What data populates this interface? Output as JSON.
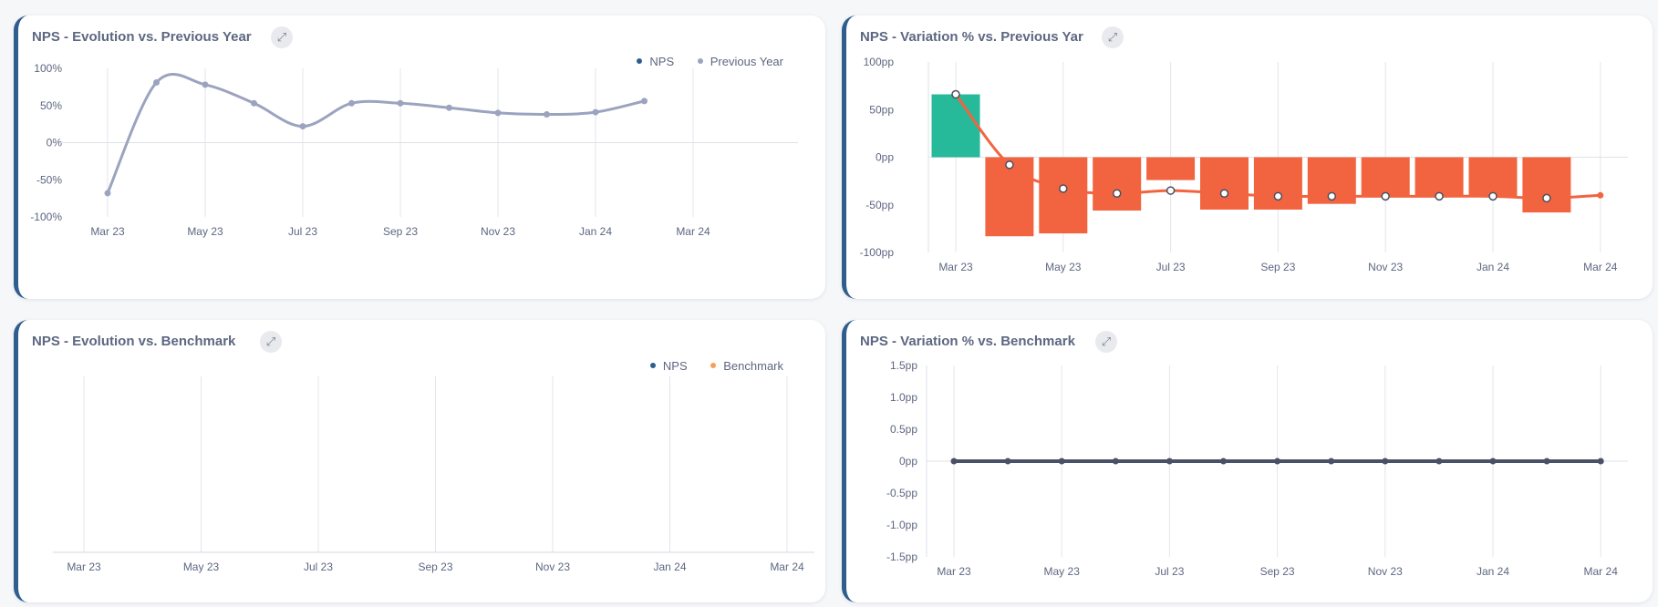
{
  "cards": [
    {
      "title": "NPS - Evolution vs. Previous Year",
      "legend": [
        {
          "label": "NPS",
          "color": "#2f5d8e"
        },
        {
          "label": "Previous Year",
          "color": "#9ba3bf"
        }
      ]
    },
    {
      "title": "NPS - Variation % vs. Previous Yar"
    },
    {
      "title": "NPS - Evolution vs. Benchmark",
      "legend": [
        {
          "label": "NPS",
          "color": "#2f5d8e"
        },
        {
          "label": "Benchmark",
          "color": "#f5a05a"
        }
      ]
    },
    {
      "title": "NPS - Variation % vs. Benchmark"
    }
  ],
  "expand_icon": "expand-icon",
  "chart_data": [
    {
      "type": "line",
      "title": "NPS - Evolution vs. Previous Year",
      "x_ticks": [
        "Mar 23",
        "May 23",
        "Jul 23",
        "Sep 23",
        "Nov 23",
        "Jan 24",
        "Mar 24"
      ],
      "y_ticks": [
        "100%",
        "50%",
        "0%",
        "-50%",
        "-100%"
      ],
      "ylim": [
        -100,
        100
      ],
      "series": [
        {
          "name": "Previous Year",
          "color": "#9ba3bf",
          "x": [
            "2023-03",
            "2023-04",
            "2023-05",
            "2023-06",
            "2023-07",
            "2023-08",
            "2023-09",
            "2023-10",
            "2023-11",
            "2023-12",
            "2024-01",
            "2024-02"
          ],
          "y": [
            -68,
            81,
            78,
            53,
            22,
            53,
            53,
            47,
            40,
            38,
            41,
            56
          ]
        },
        {
          "name": "NPS",
          "color": "#2f5d8e",
          "x": [],
          "y": []
        }
      ],
      "grid": "vertical",
      "legend_position": "top-right"
    },
    {
      "type": "bar",
      "title": "NPS - Variation % vs. Previous Yar",
      "x_ticks": [
        "Mar 23",
        "May 23",
        "Jul 23",
        "Sep 23",
        "Nov 23",
        "Jan 24",
        "Mar 24"
      ],
      "y_ticks": [
        "100pp",
        "50pp",
        "0pp",
        "-50pp",
        "-100pp"
      ],
      "ylim": [
        -100,
        100
      ],
      "bars": {
        "x": [
          "2023-03",
          "2023-04",
          "2023-05",
          "2023-06",
          "2023-07",
          "2023-08",
          "2023-09",
          "2023-10",
          "2023-11",
          "2023-12",
          "2024-01",
          "2024-02"
        ],
        "values": [
          66,
          -83,
          -80,
          -56,
          -24,
          -55,
          -55,
          -49,
          -41,
          -41,
          -41,
          -58
        ],
        "positive_color": "#26b99a",
        "negative_color": "#f26440"
      },
      "line": {
        "color": "#f26440",
        "x": [
          "2023-03",
          "2023-04",
          "2023-05",
          "2023-06",
          "2023-07",
          "2023-08",
          "2023-09",
          "2023-10",
          "2023-11",
          "2023-12",
          "2024-01",
          "2024-02",
          "2024-03"
        ],
        "y": [
          66,
          -8,
          -33,
          -38,
          -35,
          -38,
          -41,
          -41,
          -41,
          -41,
          -41,
          -43,
          -40
        ]
      },
      "grid": "vertical"
    },
    {
      "type": "line",
      "title": "NPS - Evolution vs. Benchmark",
      "x_ticks": [
        "Mar 23",
        "May 23",
        "Jul 23",
        "Sep 23",
        "Nov 23",
        "Jan 24",
        "Mar 24"
      ],
      "series": [
        {
          "name": "NPS",
          "color": "#2f5d8e",
          "x": [],
          "y": []
        },
        {
          "name": "Benchmark",
          "color": "#f5a05a",
          "x": [],
          "y": []
        }
      ],
      "grid": "vertical",
      "legend_position": "top-right"
    },
    {
      "type": "line",
      "title": "NPS - Variation % vs. Benchmark",
      "x_ticks": [
        "Mar 23",
        "May 23",
        "Jul 23",
        "Sep 23",
        "Nov 23",
        "Jan 24",
        "Mar 24"
      ],
      "y_ticks": [
        "1.5pp",
        "1.0pp",
        "0.5pp",
        "0pp",
        "-0.5pp",
        "-1.0pp",
        "-1.5pp"
      ],
      "ylim": [
        -1.5,
        1.5
      ],
      "series": [
        {
          "color": "#4a5066",
          "x": [
            "2023-03",
            "2023-04",
            "2023-05",
            "2023-06",
            "2023-07",
            "2023-08",
            "2023-09",
            "2023-10",
            "2023-11",
            "2023-12",
            "2024-01",
            "2024-02",
            "2024-03"
          ],
          "y": [
            0,
            0,
            0,
            0,
            0,
            0,
            0,
            0,
            0,
            0,
            0,
            0,
            0
          ]
        }
      ],
      "grid": "vertical"
    }
  ]
}
